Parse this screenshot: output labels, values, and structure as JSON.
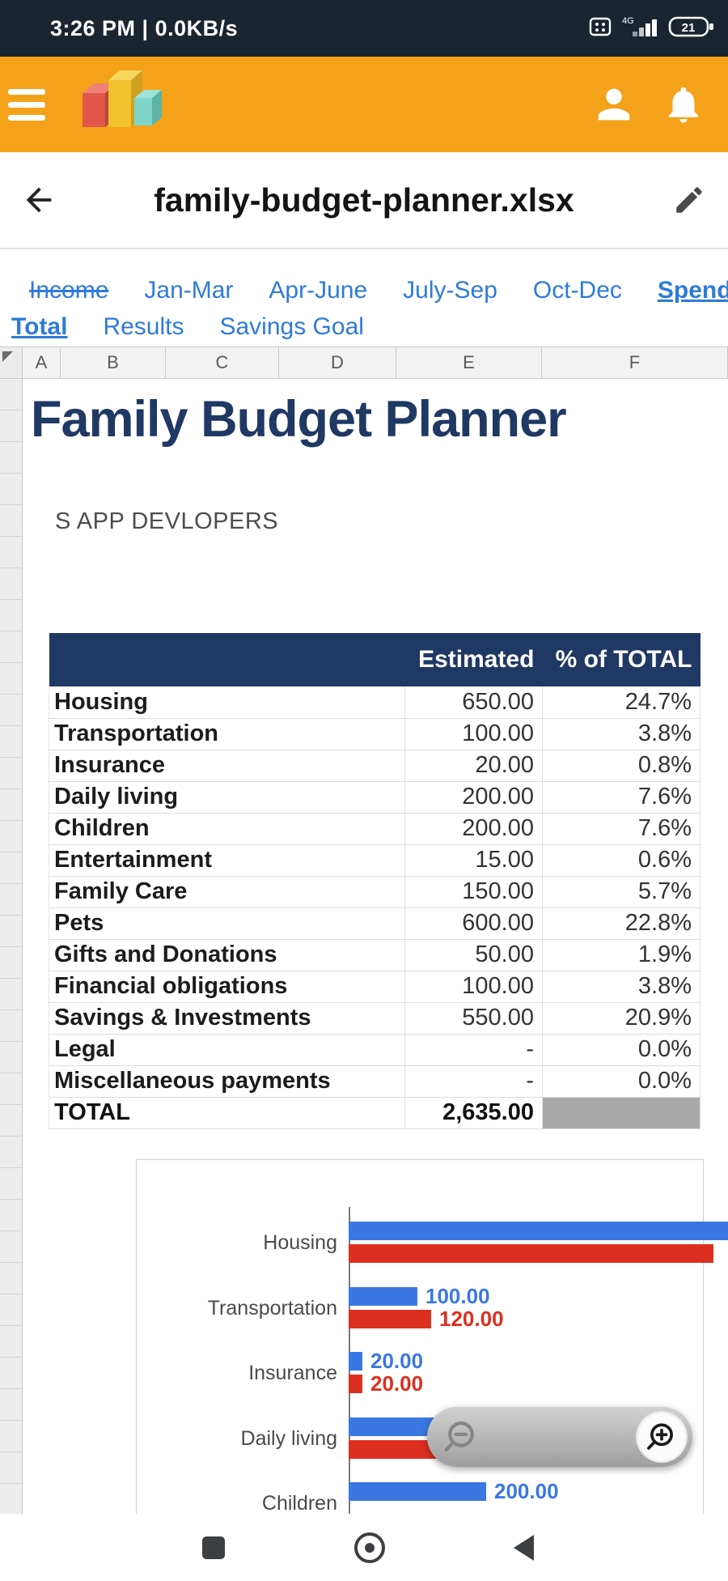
{
  "colors": {
    "app_bar_orange": "#F5A21B",
    "status_bar_navy": "#1B2531",
    "table_header_navy": "#1F3864",
    "title_navy": "#1F3864",
    "tab_link_blue": "#2E7BD9",
    "bar_blue": "#3B77E3",
    "bar_red": "#DD2F1F",
    "total_cell_gray": "#A9A9A9"
  },
  "status_bar": {
    "left_text": "3:26 PM | 0.0KB/s",
    "network_label": "4G",
    "battery_level": "21"
  },
  "file_bar": {
    "title": "family-budget-planner.xlsx"
  },
  "tabs": {
    "rows": [
      [
        {
          "label": "Income",
          "style": "strike"
        },
        {
          "label": "Jan-Mar",
          "style": "normal"
        },
        {
          "label": "Apr-June",
          "style": "normal"
        },
        {
          "label": "July-Sep",
          "style": "normal"
        },
        {
          "label": "Oct-Dec",
          "style": "normal"
        },
        {
          "label": "Spending",
          "style": "active"
        }
      ],
      [
        {
          "label": "Total",
          "style": "active"
        },
        {
          "label": "Results",
          "style": "normal"
        },
        {
          "label": "Savings Goal",
          "style": "normal"
        }
      ]
    ]
  },
  "grid": {
    "column_headers": [
      "A",
      "B",
      "C",
      "D",
      "E",
      "F"
    ]
  },
  "sheet": {
    "title": "Family Budget Planner",
    "subtitle": "S APP DEVLOPERS"
  },
  "table": {
    "col_headers": [
      "Estimated",
      "% of TOTAL"
    ],
    "rows": [
      [
        "Housing",
        "650.00",
        "24.7%"
      ],
      [
        "Transportation",
        "100.00",
        "3.8%"
      ],
      [
        "Insurance",
        "20.00",
        "0.8%"
      ],
      [
        "Daily living",
        "200.00",
        "7.6%"
      ],
      [
        "Children",
        "200.00",
        "7.6%"
      ],
      [
        "Entertainment",
        "15.00",
        "0.6%"
      ],
      [
        "Family Care",
        "150.00",
        "5.7%"
      ],
      [
        "Pets",
        "600.00",
        "22.8%"
      ],
      [
        "Gifts and Donations",
        "50.00",
        "1.9%"
      ],
      [
        "Financial obligations",
        "100.00",
        "3.8%"
      ],
      [
        "Savings & Investments",
        "550.00",
        "20.9%"
      ],
      [
        "Legal",
        "-",
        "0.0%"
      ],
      [
        "Miscellaneous payments",
        "-",
        "0.0%"
      ]
    ],
    "total_row": {
      "label": "TOTAL",
      "estimated": "2,635.00",
      "percent": ""
    }
  },
  "chart_data": {
    "type": "bar",
    "orientation": "horizontal",
    "categories": [
      "Housing",
      "Transportation",
      "Insurance",
      "Daily living",
      "Children"
    ],
    "series": [
      {
        "name": "blue",
        "color": "#3B77E3",
        "values": [
          650,
          100,
          20,
          200,
          200
        ],
        "labels": [
          "",
          "100.00",
          "20.00",
          "",
          "200.00"
        ]
      },
      {
        "name": "red",
        "color": "#DD2F1F",
        "values": [
          530,
          120,
          20,
          195,
          null
        ],
        "labels": [
          "",
          "120.00",
          "20.00",
          "",
          ""
        ]
      }
    ],
    "axis_color": "#7a7a7a",
    "legend": "none",
    "grid": "off"
  }
}
